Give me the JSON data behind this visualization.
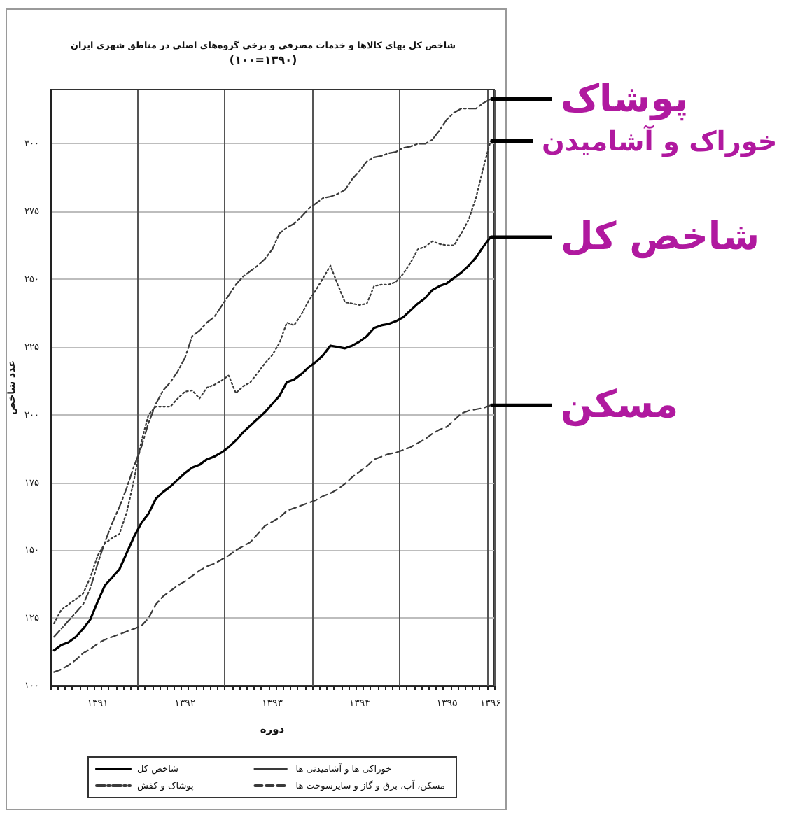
{
  "chart_data": {
    "type": "line",
    "title": "شاخص کل بهای کالاها و خدمات مصرفی و برخی گروه‌های اصلی در مناطق شهری ایران",
    "subtitle": "(۱۰۰=۱۳۹۰)",
    "xlabel": "دوره",
    "ylabel": "عدد شاخص",
    "categories": [
      null,
      null,
      null,
      null,
      null,
      null,
      "۱۳۹۱",
      null,
      null,
      null,
      null,
      null,
      null,
      null,
      null,
      null,
      null,
      null,
      "۱۳۹۲",
      null,
      null,
      null,
      null,
      null,
      null,
      null,
      null,
      null,
      null,
      null,
      "۱۳۹۳",
      null,
      null,
      null,
      null,
      null,
      null,
      null,
      null,
      null,
      null,
      null,
      "۱۳۹۴",
      null,
      null,
      null,
      null,
      null,
      null,
      null,
      null,
      null,
      null,
      null,
      "۱۳۹۵",
      null,
      null,
      null,
      null,
      null,
      "۱۳۹۶"
    ],
    "series": [
      {
        "name": "شاخص کل",
        "color": "#000000",
        "line_style": "solid",
        "values": [
          113,
          115,
          116,
          118,
          121,
          124.5,
          131,
          137,
          140,
          143,
          149,
          155,
          160,
          163.5,
          169,
          171.5,
          173.5,
          176,
          178.5,
          180.5,
          181.5,
          183.5,
          184.5,
          186,
          188,
          190.5,
          193.5,
          196,
          198.5,
          201,
          204,
          207,
          212,
          213,
          215,
          217.5,
          219.5,
          222,
          225.5,
          225,
          224.5,
          225.5,
          227,
          229,
          232,
          233,
          233.5,
          234.5,
          236,
          238.5,
          241,
          243,
          246,
          247.5,
          248.5,
          250.5,
          252.5,
          255,
          258,
          262,
          265.5
        ]
      },
      {
        "name": "خوراکی ها و آشامیدنی ها",
        "color": "#3a3a3a",
        "line_style": "dotted",
        "values": [
          123,
          128,
          130,
          132,
          134,
          140,
          148,
          152.5,
          154.5,
          156,
          164,
          176,
          190,
          200,
          203,
          203,
          203,
          206,
          208.5,
          209,
          206,
          210,
          211,
          212.5,
          214.5,
          208,
          210.5,
          212,
          215.5,
          219,
          222,
          226.5,
          234,
          233,
          237,
          242,
          246,
          250.5,
          255,
          248,
          241.5,
          241,
          240.5,
          241,
          247.5,
          248,
          248,
          249,
          252,
          256,
          261,
          262,
          264,
          263,
          262.5,
          262.5,
          267,
          272,
          280,
          291,
          301
        ]
      },
      {
        "name": "پوشاک و کفش",
        "color": "#3a3a3a",
        "line_style": "dashdot",
        "values": [
          118,
          121,
          124,
          127,
          130,
          136,
          145,
          153,
          160,
          166,
          173,
          181,
          188,
          197,
          204,
          209,
          212,
          216,
          221,
          229,
          231,
          234,
          236,
          240,
          244,
          248,
          251,
          253,
          255,
          257.5,
          261,
          267,
          269,
          270.5,
          273,
          276,
          278,
          280,
          280.5,
          281.5,
          283,
          287,
          290,
          293.5,
          295,
          295.5,
          296.5,
          297,
          298.5,
          299,
          300,
          300,
          301.5,
          305,
          309,
          311.5,
          313,
          313,
          313,
          315,
          316.5
        ]
      },
      {
        "name": "مسکن، آب، برق و گاز و سایرسوخت ها",
        "color": "#3a3a3a",
        "line_style": "dashed",
        "values": [
          105,
          106,
          107.5,
          109.5,
          112,
          113.5,
          115.5,
          117,
          118,
          119,
          120,
          121,
          122,
          125,
          130,
          133,
          135,
          137,
          138.5,
          140.5,
          142.5,
          144,
          145,
          146.5,
          148,
          150,
          151.5,
          153,
          156,
          159,
          160.5,
          162,
          164.5,
          165.5,
          166.5,
          167.5,
          168.5,
          170,
          171,
          172.5,
          174.5,
          177,
          179,
          181,
          183.5,
          184.5,
          185.5,
          186,
          187,
          188,
          189.5,
          191,
          193,
          194.5,
          195.5,
          198,
          200.5,
          201.5,
          202,
          202.5,
          203.5
        ]
      }
    ],
    "ylim": [
      100,
      320
    ],
    "yticks": [
      {
        "value": 100,
        "label": "۱۰۰"
      },
      {
        "value": 125,
        "label": "۱۲۵"
      },
      {
        "value": 150,
        "label": "۱۵۰"
      },
      {
        "value": 175,
        "label": "۱۷۵"
      },
      {
        "value": 200,
        "label": "۲۰۰"
      },
      {
        "value": 225,
        "label": "۲۲۵"
      },
      {
        "value": 250,
        "label": "۲۵۰"
      },
      {
        "value": 275,
        "label": "۲۷۵"
      },
      {
        "value": 300,
        "label": "۳۰۰"
      }
    ],
    "grid": true,
    "legend": "bottom",
    "marker": "none",
    "annotations": [
      {
        "text": "پوشاک",
        "x": "۱۳۹۶",
        "y": 316.5
      },
      {
        "text": "خوراک و آشامیدن",
        "x": "۱۳۹۶",
        "y": 301
      },
      {
        "text": "شاخص کل",
        "x": "۱۳۹۶",
        "y": 265.5
      },
      {
        "text": "مسکن",
        "x": "۱۳۹۶",
        "y": 203.5
      }
    ]
  }
}
